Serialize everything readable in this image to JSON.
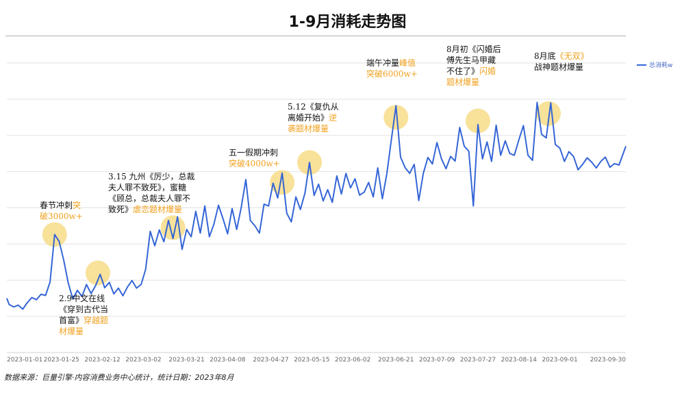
{
  "chart_data": {
    "type": "line",
    "title": "1-9月消耗走势图",
    "xlabel": "",
    "ylabel": "",
    "x_tick_labels": [
      "2023-01-01",
      "2023-01-25",
      "2023-02-12",
      "2023-03-02",
      "2023-03-21",
      "2023-04-08",
      "2023-04-27",
      "2023-05-15",
      "2023-06-02",
      "2023-06-21",
      "2023-07-09",
      "2023-07-27",
      "2023-08-14",
      "2023-09-01",
      "2023-09-30"
    ],
    "grid": "horizontal",
    "legend_position": "top-right",
    "series": [
      {
        "name": "总消耗w",
        "color": "#3465d6",
        "points": [
          [
            "2023-01-01",
            1500
          ],
          [
            "2023-01-02",
            1330
          ],
          [
            "2023-01-04",
            1260
          ],
          [
            "2023-01-06",
            1310
          ],
          [
            "2023-01-08",
            1200
          ],
          [
            "2023-01-10",
            1380
          ],
          [
            "2023-01-12",
            1520
          ],
          [
            "2023-01-14",
            1460
          ],
          [
            "2023-01-16",
            1610
          ],
          [
            "2023-01-18",
            1580
          ],
          [
            "2023-01-20",
            1950
          ],
          [
            "2023-01-22",
            3260
          ],
          [
            "2023-01-24",
            3070
          ],
          [
            "2023-01-26",
            2550
          ],
          [
            "2023-01-28",
            1920
          ],
          [
            "2023-01-30",
            1480
          ],
          [
            "2023-02-01",
            1720
          ],
          [
            "2023-02-03",
            1550
          ],
          [
            "2023-02-05",
            1880
          ],
          [
            "2023-02-07",
            1630
          ],
          [
            "2023-02-09",
            1850
          ],
          [
            "2023-02-11",
            2160
          ],
          [
            "2023-02-13",
            1790
          ],
          [
            "2023-02-15",
            1940
          ],
          [
            "2023-02-17",
            1620
          ],
          [
            "2023-02-19",
            1780
          ],
          [
            "2023-02-21",
            1570
          ],
          [
            "2023-02-23",
            1810
          ],
          [
            "2023-02-25",
            1990
          ],
          [
            "2023-02-27",
            1780
          ],
          [
            "2023-03-01",
            1880
          ],
          [
            "2023-03-03",
            2300
          ],
          [
            "2023-03-05",
            3350
          ],
          [
            "2023-03-07",
            2950
          ],
          [
            "2023-03-09",
            3390
          ],
          [
            "2023-03-11",
            3060
          ],
          [
            "2023-03-13",
            3650
          ],
          [
            "2023-03-15",
            3150
          ],
          [
            "2023-03-17",
            3750
          ],
          [
            "2023-03-19",
            2850
          ],
          [
            "2023-03-21",
            3400
          ],
          [
            "2023-03-23",
            3200
          ],
          [
            "2023-03-25",
            3900
          ],
          [
            "2023-03-27",
            3300
          ],
          [
            "2023-03-29",
            4050
          ],
          [
            "2023-03-31",
            3200
          ],
          [
            "2023-04-02",
            3550
          ],
          [
            "2023-04-04",
            4070
          ],
          [
            "2023-04-06",
            3700
          ],
          [
            "2023-04-08",
            3280
          ],
          [
            "2023-04-10",
            3980
          ],
          [
            "2023-04-12",
            3400
          ],
          [
            "2023-04-14",
            4010
          ],
          [
            "2023-04-16",
            4780
          ],
          [
            "2023-04-18",
            3650
          ],
          [
            "2023-04-20",
            3500
          ],
          [
            "2023-04-22",
            3300
          ],
          [
            "2023-04-24",
            4100
          ],
          [
            "2023-04-26",
            4050
          ],
          [
            "2023-04-28",
            4680
          ],
          [
            "2023-04-30",
            4270
          ],
          [
            "2023-05-02",
            4960
          ],
          [
            "2023-05-04",
            3850
          ],
          [
            "2023-05-06",
            3610
          ],
          [
            "2023-05-08",
            4300
          ],
          [
            "2023-05-10",
            3950
          ],
          [
            "2023-05-12",
            4410
          ],
          [
            "2023-05-14",
            5250
          ],
          [
            "2023-05-16",
            4340
          ],
          [
            "2023-05-18",
            4650
          ],
          [
            "2023-05-20",
            4190
          ],
          [
            "2023-05-22",
            4500
          ],
          [
            "2023-05-24",
            4150
          ],
          [
            "2023-05-26",
            4880
          ],
          [
            "2023-05-28",
            4380
          ],
          [
            "2023-05-30",
            4950
          ],
          [
            "2023-06-01",
            4550
          ],
          [
            "2023-06-03",
            4800
          ],
          [
            "2023-06-05",
            4350
          ],
          [
            "2023-06-07",
            4430
          ],
          [
            "2023-06-09",
            4700
          ],
          [
            "2023-06-11",
            4300
          ],
          [
            "2023-06-13",
            5100
          ],
          [
            "2023-06-15",
            4250
          ],
          [
            "2023-06-17",
            4950
          ],
          [
            "2023-06-19",
            5900
          ],
          [
            "2023-06-21",
            6820
          ],
          [
            "2023-06-23",
            5400
          ],
          [
            "2023-06-25",
            5110
          ],
          [
            "2023-06-27",
            4950
          ],
          [
            "2023-06-29",
            5200
          ],
          [
            "2023-07-01",
            4200
          ],
          [
            "2023-07-03",
            4950
          ],
          [
            "2023-07-05",
            5390
          ],
          [
            "2023-07-07",
            5210
          ],
          [
            "2023-07-09",
            5800
          ],
          [
            "2023-07-11",
            5350
          ],
          [
            "2023-07-13",
            5080
          ],
          [
            "2023-07-15",
            5420
          ],
          [
            "2023-07-17",
            5290
          ],
          [
            "2023-07-19",
            6220
          ],
          [
            "2023-07-21",
            5700
          ],
          [
            "2023-07-23",
            5560
          ],
          [
            "2023-07-25",
            4050
          ],
          [
            "2023-07-27",
            6300
          ],
          [
            "2023-07-29",
            5350
          ],
          [
            "2023-07-31",
            5820
          ],
          [
            "2023-08-02",
            5280
          ],
          [
            "2023-08-04",
            6280
          ],
          [
            "2023-08-06",
            5450
          ],
          [
            "2023-08-08",
            5850
          ],
          [
            "2023-08-10",
            5500
          ],
          [
            "2023-08-12",
            5450
          ],
          [
            "2023-08-14",
            5880
          ],
          [
            "2023-08-16",
            6270
          ],
          [
            "2023-08-18",
            5450
          ],
          [
            "2023-08-20",
            5310
          ],
          [
            "2023-08-22",
            6910
          ],
          [
            "2023-08-24",
            6030
          ],
          [
            "2023-08-26",
            5930
          ],
          [
            "2023-08-28",
            6900
          ],
          [
            "2023-08-30",
            5750
          ],
          [
            "2023-09-01",
            5650
          ],
          [
            "2023-09-03",
            5280
          ],
          [
            "2023-09-05",
            5550
          ],
          [
            "2023-09-07",
            5420
          ],
          [
            "2023-09-09",
            5050
          ],
          [
            "2023-09-11",
            5200
          ],
          [
            "2023-09-13",
            5380
          ],
          [
            "2023-09-15",
            5260
          ],
          [
            "2023-09-17",
            5100
          ],
          [
            "2023-09-19",
            5280
          ],
          [
            "2023-09-21",
            5400
          ],
          [
            "2023-09-23",
            5120
          ],
          [
            "2023-09-25",
            5220
          ],
          [
            "2023-09-27",
            5180
          ],
          [
            "2023-09-30",
            5700
          ]
        ]
      }
    ],
    "highlights": [
      {
        "date": "2023-01-22",
        "value": 3260
      },
      {
        "date": "2023-02-10",
        "value": 2200
      },
      {
        "date": "2023-03-15",
        "value": 3450
      },
      {
        "date": "2023-05-02",
        "value": 4700
      },
      {
        "date": "2023-05-14",
        "value": 5250
      },
      {
        "date": "2023-06-21",
        "value": 6500
      },
      {
        "date": "2023-07-27",
        "value": 6400
      },
      {
        "date": "2023-08-27",
        "value": 6600
      }
    ],
    "annotations": [
      {
        "text": "春节冲刺",
        "highlight": "突",
        "text2": "",
        "lines": [
          "破3000w+"
        ]
      },
      {
        "lines": [
          "2.9中文在线",
          "《穿到古代当"
        ],
        "text": "首富》",
        "highlight": "穿越题",
        "hl2": "材爆量"
      },
      {
        "lines": [
          "3.15 九州《厉少，总裁",
          "夫人罪不致死》，蜜糖",
          "《顾总，总裁夫人罪不"
        ],
        "text": "致死》",
        "highlight": "虐恋题材爆量"
      },
      {
        "lines": [
          "五一假期冲刺"
        ],
        "highlight": "突破4000w+"
      },
      {
        "lines": [
          "5.12《复仇从"
        ],
        "text": "离婚开始》",
        "highlight": "逆",
        "hl2": "袭题材爆量"
      },
      {
        "text": "端午冲量",
        "highlight": "峰值",
        "hl2": "突破6000w+"
      },
      {
        "lines": [
          "8月初《闪婚后",
          "傅先生马甲藏"
        ],
        "text": "不住了》",
        "highlight": "闪婚",
        "hl2": "题材爆量"
      },
      {
        "text": "8月底",
        "highlight": "《无双》",
        "lines2": [
          "战神题材爆量"
        ]
      }
    ]
  },
  "source_note": "数据来源：巨量引擎·内容消费业务中心统计，统计日期：2023年8月"
}
